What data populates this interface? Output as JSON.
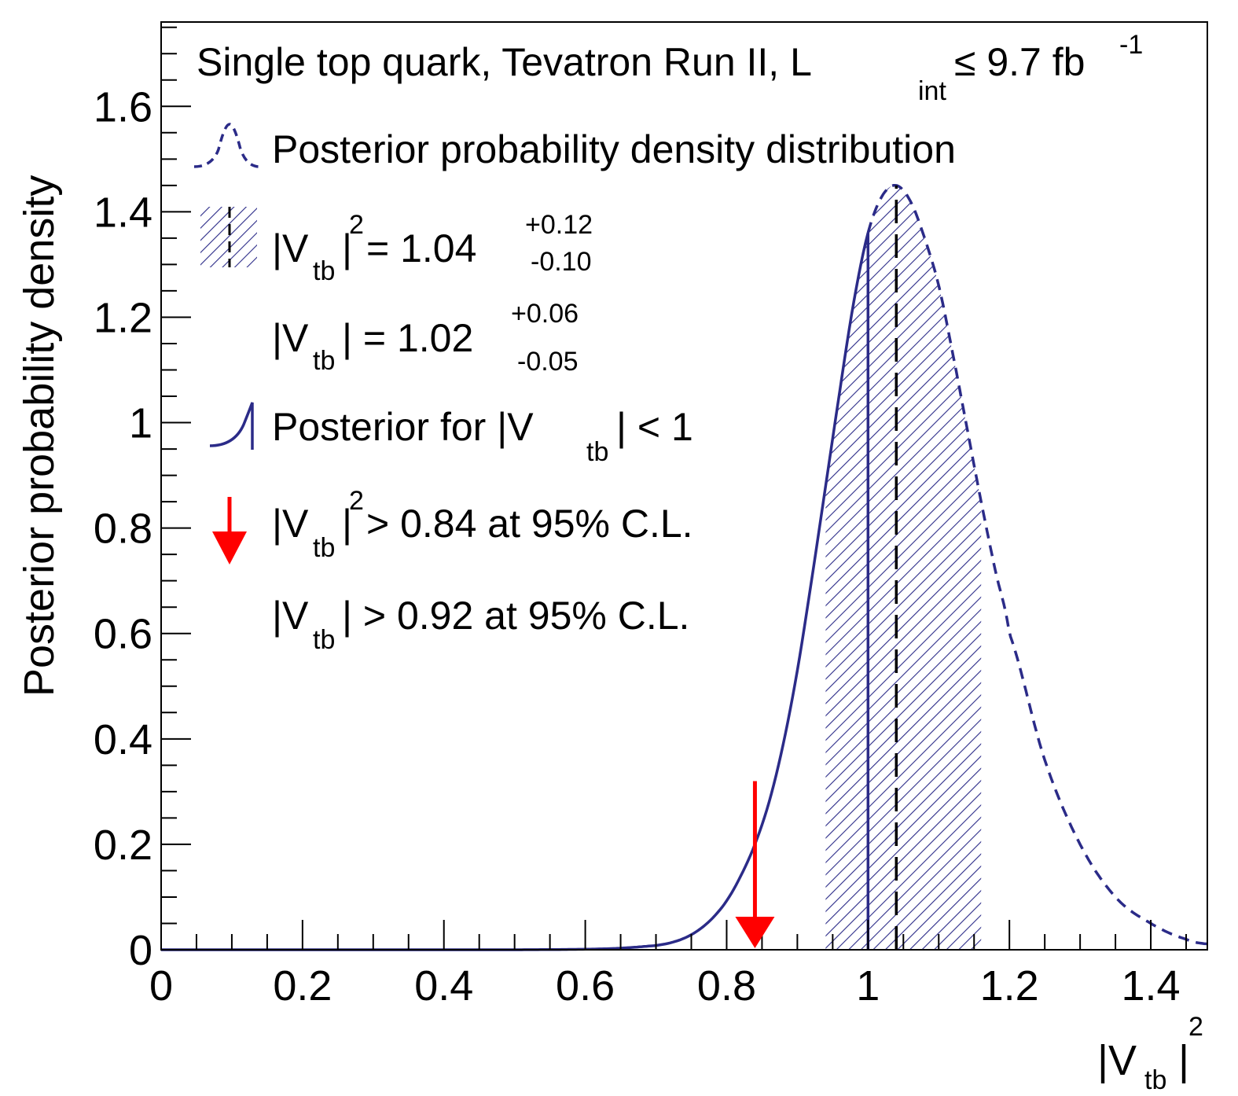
{
  "chart_data": {
    "type": "line",
    "x": [
      0.0,
      0.5,
      0.6,
      0.65,
      0.7,
      0.72,
      0.74,
      0.76,
      0.78,
      0.8,
      0.82,
      0.84,
      0.86,
      0.88,
      0.9,
      0.92,
      0.94,
      0.96,
      0.98,
      1.0,
      1.02,
      1.04,
      1.06,
      1.08,
      1.1,
      1.12,
      1.14,
      1.16,
      1.18,
      1.2,
      1.25,
      1.3,
      1.35,
      1.4,
      1.45,
      1.48
    ],
    "series": [
      {
        "name": "Posterior probability density distribution",
        "style": "dashed",
        "color": "#2b2b88",
        "values": [
          0.0,
          0.0,
          0.001,
          0.003,
          0.008,
          0.013,
          0.022,
          0.037,
          0.06,
          0.093,
          0.14,
          0.2,
          0.28,
          0.39,
          0.53,
          0.7,
          0.88,
          1.06,
          1.23,
          1.36,
          1.43,
          1.45,
          1.42,
          1.35,
          1.26,
          1.13,
          0.99,
          0.85,
          0.72,
          0.6,
          0.36,
          0.2,
          0.1,
          0.05,
          0.02,
          0.011
        ]
      },
      {
        "name": "Posterior for |Vtb| < 1",
        "style": "solid",
        "color": "#2b2b88",
        "x_max": 1.0
      }
    ],
    "band": {
      "name": "|Vtb|^2 = 1.04 +0.12 -0.10",
      "from": 0.94,
      "to": 1.16,
      "central": 1.04,
      "color": "#2b2b88"
    },
    "limit_arrow": {
      "x": 0.84,
      "y_top": 0.32,
      "color": "#ff0000"
    },
    "xlim": [
      0,
      1.48
    ],
    "ylim": [
      0,
      1.76
    ],
    "x_ticks": [
      0,
      0.2,
      0.4,
      0.6,
      0.8,
      1,
      1.2,
      1.4
    ],
    "y_ticks": [
      0,
      0.2,
      0.4,
      0.6,
      0.8,
      1,
      1.2,
      1.4,
      1.6
    ],
    "x_tick_labels": [
      "0",
      "0.2",
      "0.4",
      "0.6",
      "0.8",
      "1",
      "1.2",
      "1.4"
    ],
    "y_tick_labels": [
      "0",
      "0.2",
      "0.4",
      "0.6",
      "0.8",
      "1",
      "1.2",
      "1.4",
      "1.6"
    ],
    "ylabel": "Posterior probability density",
    "xlabel": {
      "main": "|V",
      "sub": "tb",
      "close": "|",
      "sup": "2"
    },
    "title": {
      "main": "Single top quark, Tevatron Run II, L",
      "sub": "int",
      "rest": " ≤ 9.7 fb",
      "sup": "-1"
    },
    "legend": {
      "posterior": "Posterior probability density distribution",
      "vtb2": {
        "open": "|V",
        "sub": "tb",
        "close": "|",
        "sup": "2",
        "value": " = 1.04",
        "plus": "+0.12",
        "minus": "-0.10"
      },
      "vtb": {
        "open": "|V",
        "sub": "tb",
        "close": "| = 1.02",
        "plus": "+0.06",
        "minus": "-0.05"
      },
      "restricted": {
        "open": "Posterior for |V",
        "sub": "tb",
        "close": "| < 1"
      },
      "limit_vtb2": {
        "open": "|V",
        "sub": "tb",
        "close": "|",
        "sup": "2",
        "rest": " > 0.84 at 95% C.L."
      },
      "limit_vtb": {
        "open": "|V",
        "sub": "tb",
        "close": "| > 0.92 at 95% C.L."
      }
    }
  }
}
